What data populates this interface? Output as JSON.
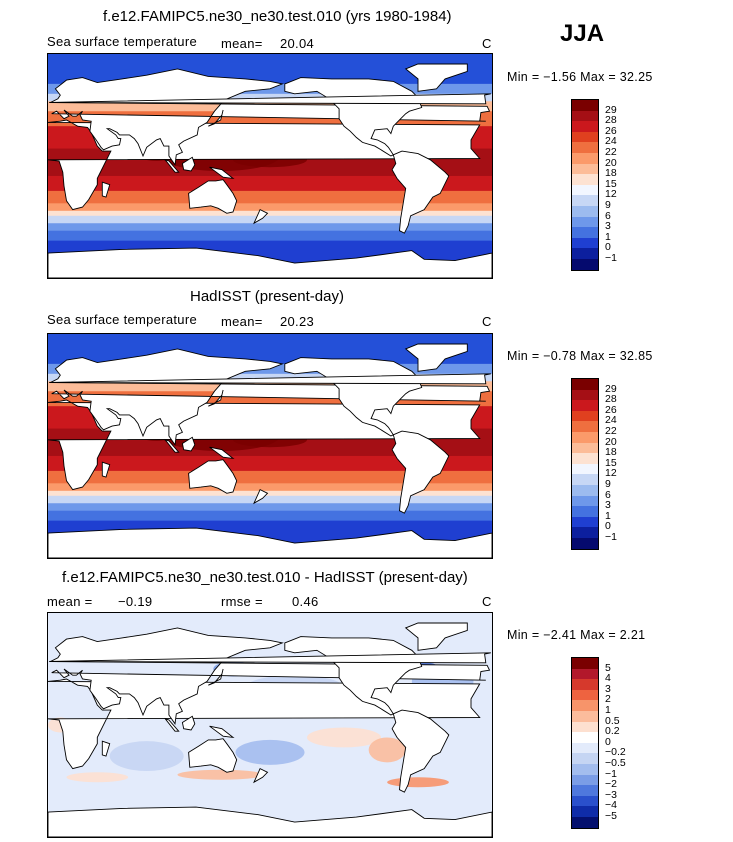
{
  "season": "JJA",
  "panels": [
    {
      "title": "f.e12.FAMIPC5.ne30_ne30.test.010 (yrs 1980-1984)",
      "variable": "Sea surface temperature",
      "mean_label": "mean=",
      "mean_value": "20.04",
      "units": "C",
      "min_label": "Min =",
      "min_value": "−1.56",
      "max_label": "Max =",
      "max_value": "32.25",
      "colorbar_ticks": [
        "29",
        "28",
        "26",
        "24",
        "22",
        "20",
        "18",
        "15",
        "12",
        "9",
        "6",
        "3",
        "1",
        "0",
        "−1"
      ]
    },
    {
      "title": "HadISST (present-day)",
      "variable": "Sea surface temperature",
      "mean_label": "mean=",
      "mean_value": "20.23",
      "units": "C",
      "min_label": "Min =",
      "min_value": "−0.78",
      "max_label": "Max =",
      "max_value": "32.85",
      "colorbar_ticks": [
        "29",
        "28",
        "26",
        "24",
        "22",
        "20",
        "18",
        "15",
        "12",
        "9",
        "6",
        "3",
        "1",
        "0",
        "−1"
      ]
    },
    {
      "title": "f.e12.FAMIPC5.ne30_ne30.test.010 - HadISST (present-day)",
      "mean_label": "mean =",
      "mean_value": "−0.19",
      "rmse_label": "rmse =",
      "rmse_value": "0.46",
      "units": "C",
      "min_label": "Min =",
      "min_value": "−2.41",
      "max_label": "Max =",
      "max_value": "2.21",
      "colorbar_ticks": [
        "5",
        "4",
        "3",
        "2",
        "1",
        "0.5",
        "0.2",
        "0",
        "−0.2",
        "−0.5",
        "−1",
        "−2",
        "−3",
        "−4",
        "−5"
      ]
    }
  ],
  "colors": {
    "land": "#ffffff",
    "coast": "#000000",
    "sst_colorbar": [
      "#7a0000",
      "#a50f15",
      "#cb181d",
      "#e0401f",
      "#ef6f3f",
      "#fb9a6a",
      "#fcbc98",
      "#fde2d2",
      "#f2f6ff",
      "#c7d7f5",
      "#9cbbef",
      "#6e98ea",
      "#4472e0",
      "#1f3fd1",
      "#0c1f9e",
      "#050a6e"
    ],
    "diff_colorbar": [
      "#7a0000",
      "#b2182b",
      "#d6392c",
      "#ee6340",
      "#f7946a",
      "#fbbc9c",
      "#fde0d0",
      "#ffffff",
      "#e3ebfb",
      "#c5d5f3",
      "#a3bdee",
      "#7b9de6",
      "#4f78dd",
      "#2a50cc",
      "#0f2ca8",
      "#04106e"
    ]
  },
  "chart_data": [
    {
      "type": "heatmap",
      "title": "f.e12.FAMIPC5.ne30_ne30.test.010 (yrs 1980-1984)",
      "variable": "Sea surface temperature",
      "units": "C",
      "season": "JJA",
      "mean": 20.04,
      "min": -1.56,
      "max": 32.25,
      "contour_levels": [
        -1,
        0,
        1,
        3,
        6,
        9,
        12,
        15,
        18,
        20,
        22,
        24,
        26,
        28,
        29
      ]
    },
    {
      "type": "heatmap",
      "title": "HadISST (present-day)",
      "variable": "Sea surface temperature",
      "units": "C",
      "season": "JJA",
      "mean": 20.23,
      "min": -0.78,
      "max": 32.85,
      "contour_levels": [
        -1,
        0,
        1,
        3,
        6,
        9,
        12,
        15,
        18,
        20,
        22,
        24,
        26,
        28,
        29
      ]
    },
    {
      "type": "heatmap",
      "title": "f.e12.FAMIPC5.ne30_ne30.test.010 - HadISST (present-day)",
      "units": "C",
      "season": "JJA",
      "mean": -0.19,
      "rmse": 0.46,
      "min": -2.41,
      "max": 2.21,
      "contour_levels": [
        -5,
        -4,
        -3,
        -2,
        -1,
        -0.5,
        -0.2,
        0,
        0.2,
        0.5,
        1,
        2,
        3,
        4,
        5
      ]
    }
  ]
}
